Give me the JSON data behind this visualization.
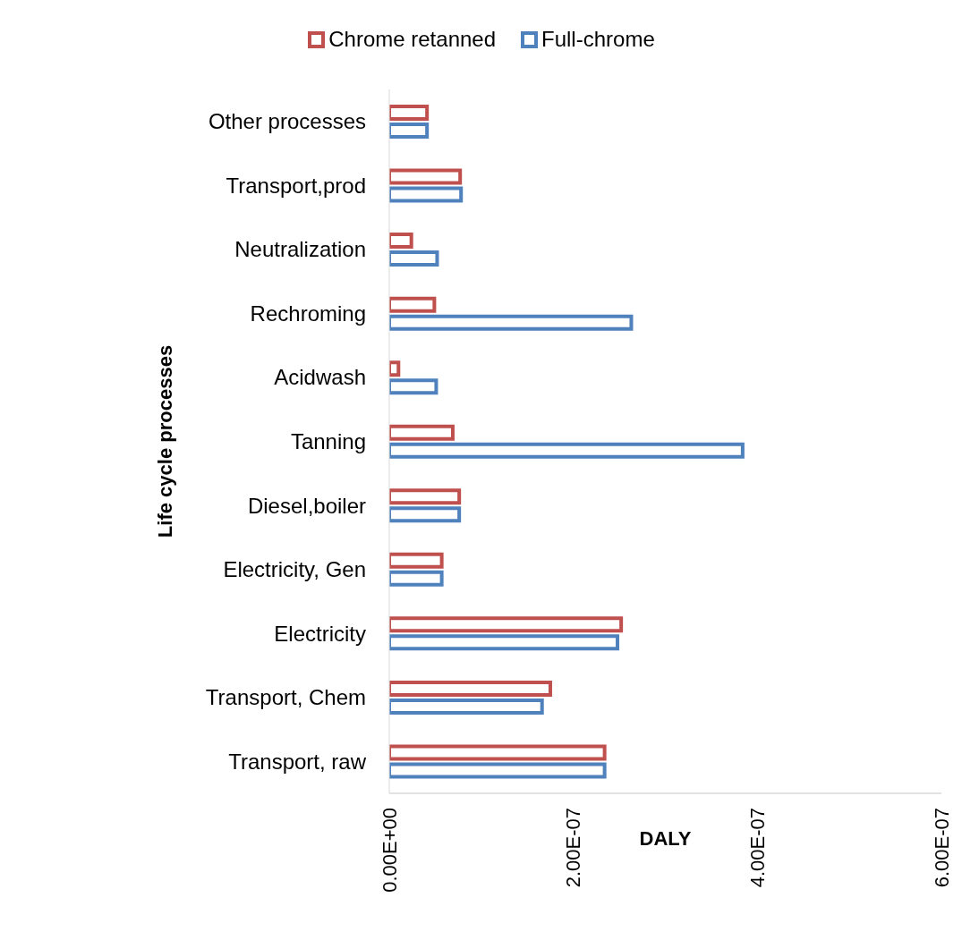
{
  "chart_data": {
    "type": "bar",
    "orientation": "horizontal",
    "xlabel": "DALY",
    "ylabel": "Life cycle processes",
    "legend": "top",
    "categories": [
      "Other processes",
      "Transport,prod",
      "Neutralization",
      "Rechroming",
      "Acidwash",
      "Tanning",
      "Diesel,boiler",
      "Electricity, Gen",
      "Electricity",
      "Transport, Chem",
      "Transport, raw"
    ],
    "series": [
      {
        "name": "Chrome retanned",
        "color": "#c0504d",
        "values": [
          4.1e-08,
          7.7e-08,
          2.4e-08,
          4.9e-08,
          1e-08,
          6.9e-08,
          7.6e-08,
          5.7e-08,
          2.52e-07,
          1.75e-07,
          2.34e-07
        ]
      },
      {
        "name": "Full-chrome",
        "color": "#4f81bd",
        "values": [
          4.1e-08,
          7.8e-08,
          5.2e-08,
          2.63e-07,
          5.1e-08,
          3.84e-07,
          7.6e-08,
          5.7e-08,
          2.48e-07,
          1.66e-07,
          2.34e-07
        ]
      }
    ],
    "xlim": [
      0,
      6e-07
    ],
    "xticks": [
      {
        "value": 0,
        "label": "0.00E+00"
      },
      {
        "value": 2e-07,
        "label": "2.00E-07"
      },
      {
        "value": 4e-07,
        "label": "4.00E-07"
      },
      {
        "value": 6e-07,
        "label": "6.00E-07"
      }
    ]
  }
}
